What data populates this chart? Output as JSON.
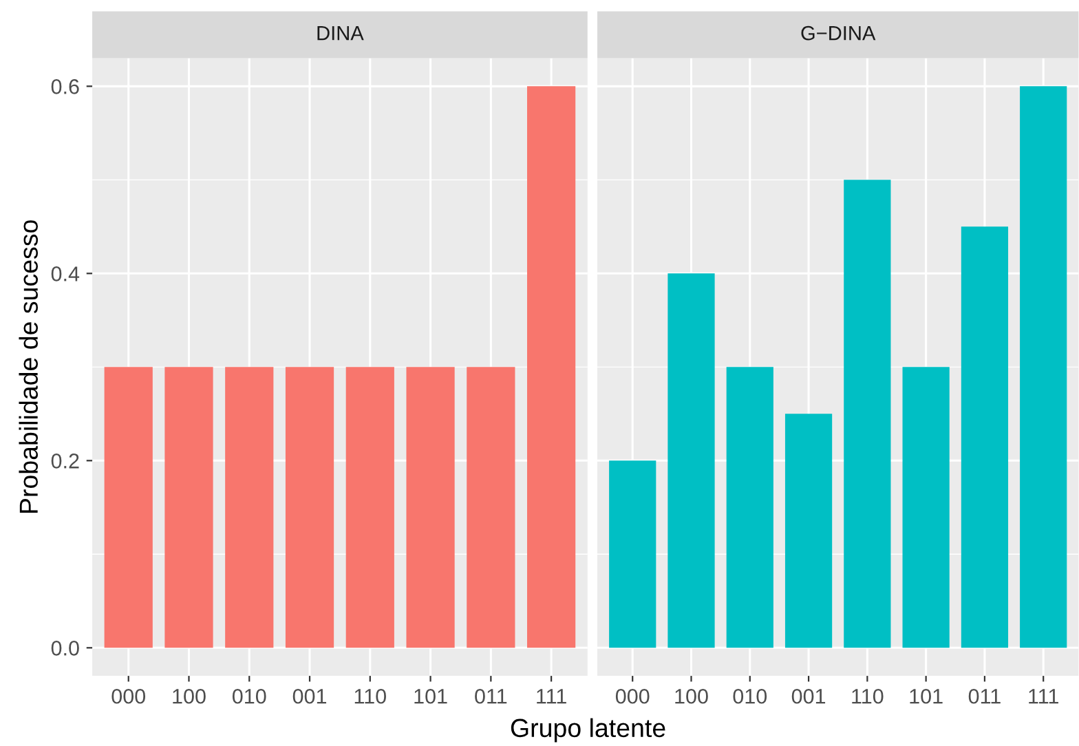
{
  "chart_data": [
    {
      "type": "bar",
      "title": "DINA",
      "ylabel": "Probabilidade de sucesso",
      "xlabel": "Grupo latente",
      "categories": [
        "000",
        "100",
        "010",
        "001",
        "110",
        "101",
        "011",
        "111"
      ],
      "series": [
        {
          "color": "#f8766d",
          "values": [
            0.3,
            0.3,
            0.3,
            0.3,
            0.3,
            0.3,
            0.3,
            0.6
          ]
        }
      ],
      "ylim": [
        -0.03,
        0.63
      ],
      "yticks": [
        {
          "value": 0,
          "label": "0.0"
        },
        0.2,
        0.4,
        0.6
      ],
      "grid": true,
      "legend": false
    },
    {
      "type": "bar",
      "title": "G−DINA",
      "categories": [
        "000",
        "100",
        "010",
        "001",
        "110",
        "101",
        "011",
        "111"
      ],
      "series": [
        {
          "color": "#00bfc4",
          "values": [
            0.2,
            0.4,
            0.3,
            0.25,
            0.5,
            0.3,
            0.45,
            0.6
          ]
        }
      ],
      "ylim": [
        -0.03,
        0.63
      ],
      "yticks": [
        {
          "value": 0,
          "label": null
        },
        {
          "value": 0.2,
          "label": null
        },
        {
          "value": 0.4,
          "label": null
        },
        {
          "value": 0.6,
          "label": null
        }
      ],
      "tick_labels": "x",
      "grid": true,
      "legend": false
    }
  ]
}
